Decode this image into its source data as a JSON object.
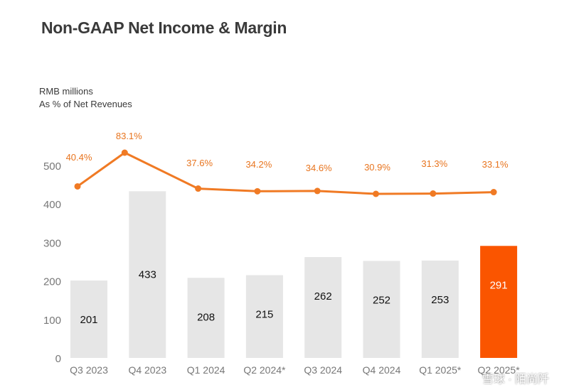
{
  "title": "Non-GAAP Net Income & Margin",
  "units": {
    "line1": "RMB millions",
    "line2": "As % of Net Revenues"
  },
  "watermark": "雪球 · 陌尚阡",
  "colors": {
    "bar": "#e6e6e6",
    "bar_highlight": "#fa5500",
    "line": "#f07a24",
    "margin_label": "#e8741e",
    "axis_text": "#777777",
    "bar_text": "#111111",
    "bar_text_highlight": "#ffffff"
  },
  "chart_data": {
    "type": "bar",
    "title": "Non-GAAP Net Income & Margin",
    "ylabel": "RMB millions",
    "ylim": [
      0,
      500
    ],
    "yticks": [
      0,
      100,
      200,
      300,
      400,
      500
    ],
    "categories": [
      "Q3 2023",
      "Q4 2023",
      "Q1 2024",
      "Q2 2024*",
      "Q3 2024",
      "Q4 2024",
      "Q1 2025*",
      "Q2 2025*"
    ],
    "series": [
      {
        "name": "Non-GAAP Net Income (RMB millions)",
        "type": "bar",
        "values": [
          201,
          433,
          208,
          215,
          262,
          252,
          253,
          291
        ],
        "highlight_index": 7
      },
      {
        "name": "Non-GAAP Net Margin (As % of Net Revenues)",
        "type": "line",
        "values": [
          40.4,
          83.1,
          37.6,
          34.2,
          34.6,
          30.9,
          31.3,
          33.1
        ],
        "labels": [
          "40.4%",
          "83.1%",
          "37.6%",
          "34.2%",
          "34.6%",
          "30.9%",
          "31.3%",
          "33.1%"
        ]
      }
    ]
  }
}
